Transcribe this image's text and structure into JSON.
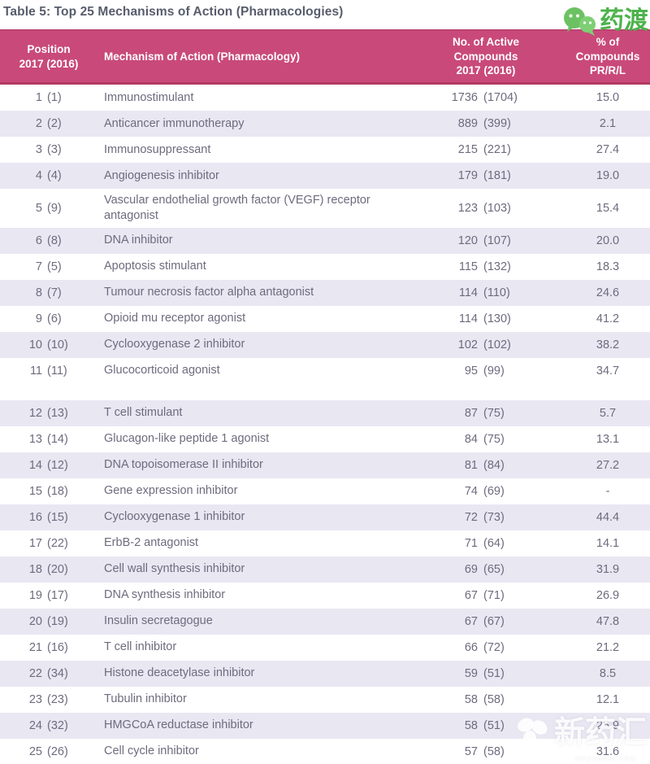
{
  "title": "Table 5: Top 25 Mechanisms of Action (Pharmacologies)",
  "logo": {
    "brand": "药渡",
    "icon": "wechat-bubbles-icon"
  },
  "watermark": {
    "text": "新药汇",
    "subtext": "xinyaohui.com",
    "icon": "clover-icon"
  },
  "colors": {
    "header_bg": "#c94a7a",
    "header_border_bottom": "#b23a60",
    "header_border_top": "#bd4270",
    "row_alt_bg": "#e9e7f2",
    "body_text": "#6e6b7e",
    "title_text": "#575d6c",
    "header_text": "#ffffff",
    "brand_green": "#4db24c"
  },
  "table": {
    "columns": {
      "position": {
        "line1": "Position",
        "line2": "2017 (2016)"
      },
      "mechanism": {
        "label": "Mechanism of Action (Pharmacology)"
      },
      "compounds": {
        "line1": "No. of Active",
        "line2": "Compounds",
        "line3": "2017 (2016)"
      },
      "pct": {
        "line1": "% of",
        "line2": "Compounds",
        "line3": "PR/R/L"
      }
    },
    "rows": [
      {
        "position_2017": 1,
        "position_2016": 1,
        "mechanism": "Immunostimulant",
        "active_2017": 1736,
        "active_2016": 1704,
        "pct_pr_r_l": "15.0"
      },
      {
        "position_2017": 2,
        "position_2016": 2,
        "mechanism": "Anticancer immunotherapy",
        "active_2017": 889,
        "active_2016": 399,
        "pct_pr_r_l": "2.1"
      },
      {
        "position_2017": 3,
        "position_2016": 3,
        "mechanism": "Immunosuppressant",
        "active_2017": 215,
        "active_2016": 221,
        "pct_pr_r_l": "27.4"
      },
      {
        "position_2017": 4,
        "position_2016": 4,
        "mechanism": "Angiogenesis inhibitor",
        "active_2017": 179,
        "active_2016": 181,
        "pct_pr_r_l": "19.0"
      },
      {
        "position_2017": 5,
        "position_2016": 9,
        "mechanism": "Vascular endothelial growth factor (VEGF) receptor antagonist",
        "active_2017": 123,
        "active_2016": 103,
        "pct_pr_r_l": "15.4"
      },
      {
        "position_2017": 6,
        "position_2016": 8,
        "mechanism": "DNA inhibitor",
        "active_2017": 120,
        "active_2016": 107,
        "pct_pr_r_l": "20.0"
      },
      {
        "position_2017": 7,
        "position_2016": 5,
        "mechanism": "Apoptosis stimulant",
        "active_2017": 115,
        "active_2016": 132,
        "pct_pr_r_l": "18.3"
      },
      {
        "position_2017": 8,
        "position_2016": 7,
        "mechanism": "Tumour necrosis factor alpha antagonist",
        "active_2017": 114,
        "active_2016": 110,
        "pct_pr_r_l": "24.6"
      },
      {
        "position_2017": 9,
        "position_2016": 6,
        "mechanism": "Opioid mu receptor agonist",
        "active_2017": 114,
        "active_2016": 130,
        "pct_pr_r_l": "41.2"
      },
      {
        "position_2017": 10,
        "position_2016": 10,
        "mechanism": "Cyclooxygenase 2 inhibitor",
        "active_2017": 102,
        "active_2016": 102,
        "pct_pr_r_l": "38.2"
      },
      {
        "position_2017": 11,
        "position_2016": 11,
        "mechanism": "Glucocorticoid agonist",
        "active_2017": 95,
        "active_2016": 99,
        "pct_pr_r_l": "34.7"
      },
      {
        "position_2017": 12,
        "position_2016": 13,
        "mechanism": "T cell stimulant",
        "active_2017": 87,
        "active_2016": 75,
        "pct_pr_r_l": "5.7"
      },
      {
        "position_2017": 13,
        "position_2016": 14,
        "mechanism": "Glucagon-like peptide 1 agonist",
        "active_2017": 84,
        "active_2016": 75,
        "pct_pr_r_l": "13.1"
      },
      {
        "position_2017": 14,
        "position_2016": 12,
        "mechanism": "DNA topoisomerase II inhibitor",
        "active_2017": 81,
        "active_2016": 84,
        "pct_pr_r_l": "27.2"
      },
      {
        "position_2017": 15,
        "position_2016": 18,
        "mechanism": "Gene expression inhibitor",
        "active_2017": 74,
        "active_2016": 69,
        "pct_pr_r_l": "-"
      },
      {
        "position_2017": 16,
        "position_2016": 15,
        "mechanism": "Cyclooxygenase 1 inhibitor",
        "active_2017": 72,
        "active_2016": 73,
        "pct_pr_r_l": "44.4"
      },
      {
        "position_2017": 17,
        "position_2016": 22,
        "mechanism": "ErbB-2 antagonist",
        "active_2017": 71,
        "active_2016": 64,
        "pct_pr_r_l": "14.1"
      },
      {
        "position_2017": 18,
        "position_2016": 20,
        "mechanism": "Cell wall synthesis inhibitor",
        "active_2017": 69,
        "active_2016": 65,
        "pct_pr_r_l": "31.9"
      },
      {
        "position_2017": 19,
        "position_2016": 17,
        "mechanism": "DNA synthesis inhibitor",
        "active_2017": 67,
        "active_2016": 71,
        "pct_pr_r_l": "26.9"
      },
      {
        "position_2017": 20,
        "position_2016": 19,
        "mechanism": "Insulin secretagogue",
        "active_2017": 67,
        "active_2016": 67,
        "pct_pr_r_l": "47.8"
      },
      {
        "position_2017": 21,
        "position_2016": 16,
        "mechanism": "T cell inhibitor",
        "active_2017": 66,
        "active_2016": 72,
        "pct_pr_r_l": "21.2"
      },
      {
        "position_2017": 22,
        "position_2016": 34,
        "mechanism": "Histone deacetylase inhibitor",
        "active_2017": 59,
        "active_2016": 51,
        "pct_pr_r_l": "8.5"
      },
      {
        "position_2017": 23,
        "position_2016": 23,
        "mechanism": "Tubulin inhibitor",
        "active_2017": 58,
        "active_2016": 58,
        "pct_pr_r_l": "12.1"
      },
      {
        "position_2017": 24,
        "position_2016": 32,
        "mechanism": "HMGCoA reductase inhibitor",
        "active_2017": 58,
        "active_2016": 51,
        "pct_pr_r_l": "25.9"
      },
      {
        "position_2017": 25,
        "position_2016": 26,
        "mechanism": "Cell cycle inhibitor",
        "active_2017": 57,
        "active_2016": 58,
        "pct_pr_r_l": "31.6"
      }
    ]
  }
}
